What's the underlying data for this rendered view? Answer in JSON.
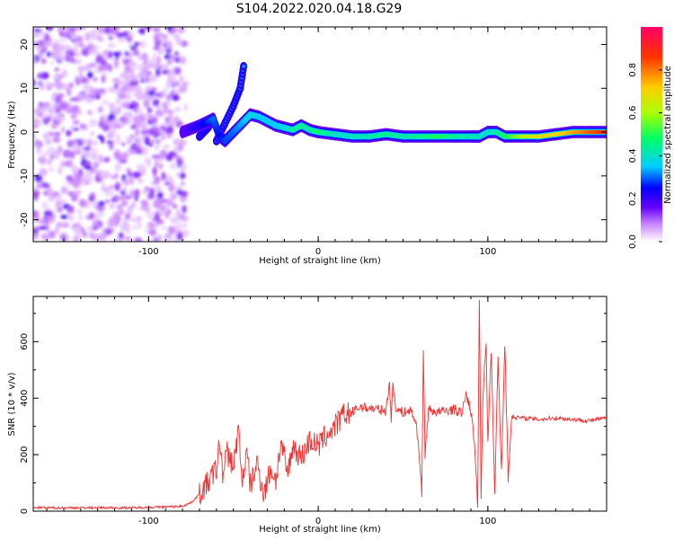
{
  "title": "S104.2022.020.04.18.G29",
  "chart_data": [
    {
      "type": "heatmap",
      "xlabel": "Height of straight line (km)",
      "ylabel": "Frequency (Hz)",
      "xlim": [
        -168,
        170
      ],
      "ylim": [
        -25,
        24
      ],
      "x_ticks": [
        -100,
        0,
        100
      ],
      "y_ticks": [
        -20,
        -10,
        0,
        10,
        20
      ],
      "colorbar": {
        "label": "Normalized spectral amplitude",
        "range": [
          0,
          1
        ],
        "ticks": [
          "0.0",
          "0.2",
          "0.4",
          "0.6",
          "0.8"
        ],
        "colors": [
          "#ffffff",
          "#cc66ff",
          "#6600ff",
          "#0000ff",
          "#00ccff",
          "#00ff66",
          "#ccff00",
          "#ffcc00",
          "#ff3300",
          "#ff0066"
        ]
      },
      "noise_region": {
        "x": [
          -168,
          -78
        ],
        "y": [
          -25,
          24
        ],
        "amplitude": 0.12
      },
      "ridge": [
        {
          "x": -80,
          "y": 0,
          "a": 0.17
        },
        {
          "x": -70,
          "y": 1.5,
          "a": 0.22
        },
        {
          "x": -62,
          "y": 3,
          "a": 0.3
        },
        {
          "x": -58,
          "y": -1,
          "a": 0.25
        },
        {
          "x": -55,
          "y": -2,
          "a": 0.28
        },
        {
          "x": -50,
          "y": 0,
          "a": 0.3
        },
        {
          "x": -45,
          "y": 2,
          "a": 0.33
        },
        {
          "x": -40,
          "y": 4,
          "a": 0.38
        },
        {
          "x": -35,
          "y": 3.5,
          "a": 0.35
        },
        {
          "x": -30,
          "y": 2.5,
          "a": 0.35
        },
        {
          "x": -25,
          "y": 1.5,
          "a": 0.35
        },
        {
          "x": -20,
          "y": 1,
          "a": 0.38
        },
        {
          "x": -15,
          "y": 0.5,
          "a": 0.42
        },
        {
          "x": -10,
          "y": 1.5,
          "a": 0.45
        },
        {
          "x": -5,
          "y": 0.5,
          "a": 0.42
        },
        {
          "x": 0,
          "y": 0,
          "a": 0.48
        },
        {
          "x": 10,
          "y": -0.5,
          "a": 0.4
        },
        {
          "x": 20,
          "y": -1,
          "a": 0.4
        },
        {
          "x": 30,
          "y": -1,
          "a": 0.42
        },
        {
          "x": 40,
          "y": -0.5,
          "a": 0.45
        },
        {
          "x": 50,
          "y": -1,
          "a": 0.42
        },
        {
          "x": 60,
          "y": -1,
          "a": 0.45
        },
        {
          "x": 70,
          "y": -1,
          "a": 0.5
        },
        {
          "x": 80,
          "y": -1,
          "a": 0.45
        },
        {
          "x": 90,
          "y": -1,
          "a": 0.42
        },
        {
          "x": 95,
          "y": -1,
          "a": 0.4
        },
        {
          "x": 100,
          "y": 0,
          "a": 0.38
        },
        {
          "x": 105,
          "y": 0,
          "a": 0.42
        },
        {
          "x": 110,
          "y": -1,
          "a": 0.48
        },
        {
          "x": 120,
          "y": -1,
          "a": 0.6
        },
        {
          "x": 130,
          "y": -1,
          "a": 0.68
        },
        {
          "x": 140,
          "y": -0.5,
          "a": 0.7
        },
        {
          "x": 150,
          "y": 0,
          "a": 0.75
        },
        {
          "x": 160,
          "y": 0,
          "a": 0.82
        },
        {
          "x": 170,
          "y": 0,
          "a": 0.88
        }
      ],
      "side_tracks": [
        [
          {
            "x": -60,
            "y": -2
          },
          {
            "x": -55,
            "y": 2
          },
          {
            "x": -50,
            "y": 6
          },
          {
            "x": -46,
            "y": 10
          },
          {
            "x": -44,
            "y": 15
          }
        ],
        [
          {
            "x": -70,
            "y": -1
          },
          {
            "x": -65,
            "y": 1
          },
          {
            "x": -62,
            "y": 3
          }
        ]
      ]
    },
    {
      "type": "line",
      "xlabel": "Height of straight line (km)",
      "ylabel": "SNR (10 * v/v)",
      "xlim": [
        -168,
        170
      ],
      "ylim": [
        0,
        760
      ],
      "x_ticks": [
        -100,
        0,
        100
      ],
      "y_ticks": [
        0,
        200,
        400,
        600
      ],
      "series": [
        {
          "color": "#ee3333",
          "x": [
            -168,
            -140,
            -110,
            -90,
            -80,
            -75,
            -70,
            -65,
            -60,
            -58,
            -56,
            -54,
            -50,
            -47,
            -45,
            -42,
            -40,
            -36,
            -32,
            -28,
            -25,
            -22,
            -18,
            -15,
            -10,
            -5,
            0,
            5,
            10,
            15,
            20,
            25,
            30,
            35,
            40,
            42,
            43,
            44,
            46,
            50,
            55,
            58,
            60,
            61,
            62,
            63,
            65,
            70,
            75,
            80,
            85,
            87,
            90,
            92,
            94,
            95,
            96,
            97,
            99,
            100,
            102,
            104,
            106,
            108,
            110,
            112,
            114,
            120,
            130,
            140,
            150,
            160,
            170
          ],
          "values": [
            12,
            12,
            12,
            15,
            18,
            30,
            60,
            100,
            150,
            245,
            120,
            210,
            160,
            290,
            110,
            200,
            90,
            170,
            60,
            150,
            110,
            240,
            130,
            230,
            190,
            250,
            230,
            270,
            300,
            340,
            350,
            370,
            365,
            360,
            355,
            460,
            320,
            450,
            360,
            350,
            355,
            300,
            170,
            60,
            560,
            200,
            360,
            350,
            355,
            360,
            345,
            420,
            350,
            250,
            30,
            760,
            40,
            400,
            600,
            250,
            570,
            60,
            540,
            140,
            600,
            110,
            335,
            330,
            325,
            330,
            325,
            320,
            330
          ]
        }
      ]
    }
  ]
}
